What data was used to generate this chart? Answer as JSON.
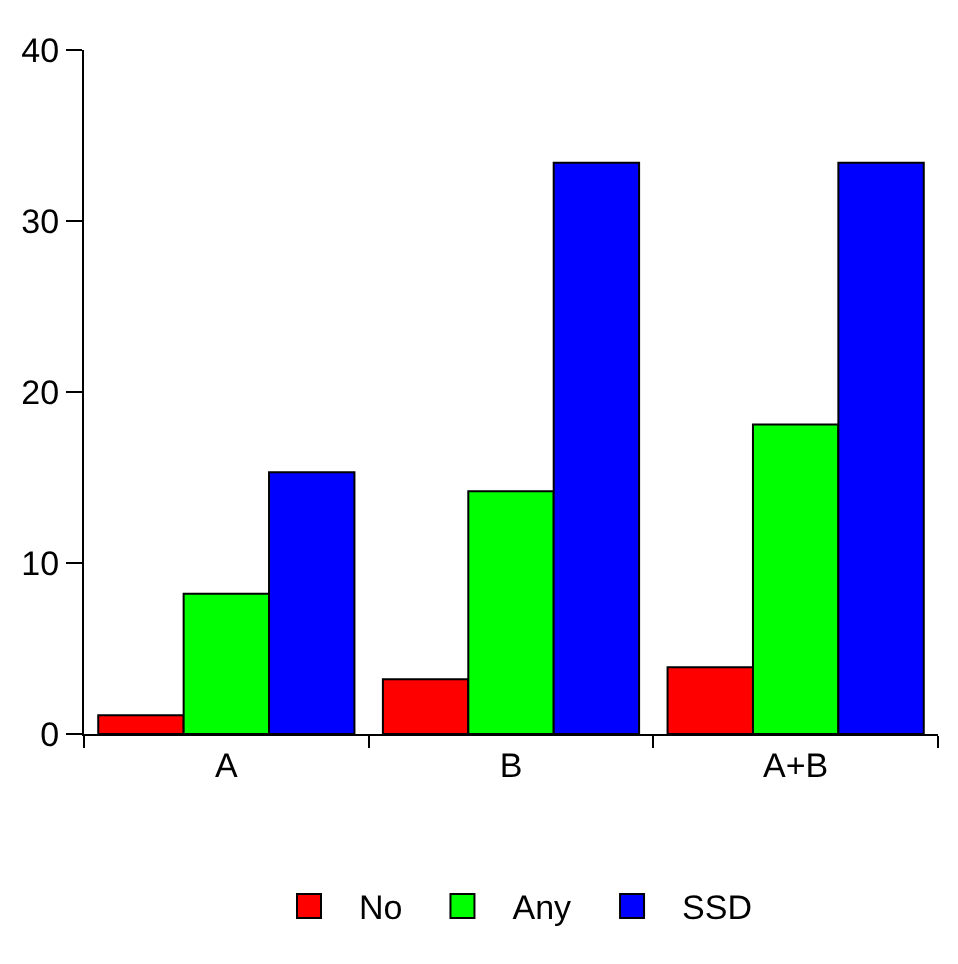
{
  "chart_data": {
    "type": "bar",
    "categories": [
      "A",
      "B",
      "A+B"
    ],
    "series": [
      {
        "name": "No",
        "color": "#ff0000",
        "values": [
          1.1,
          3.2,
          3.9
        ]
      },
      {
        "name": "Any",
        "color": "#00ff00",
        "values": [
          8.2,
          14.2,
          18.1
        ]
      },
      {
        "name": "SSD",
        "color": "#0000ff",
        "values": [
          15.3,
          33.4,
          33.4
        ]
      }
    ],
    "ylim": [
      0,
      40
    ],
    "yticks": [
      0,
      10,
      20,
      30,
      40
    ],
    "legend": "bottom"
  }
}
